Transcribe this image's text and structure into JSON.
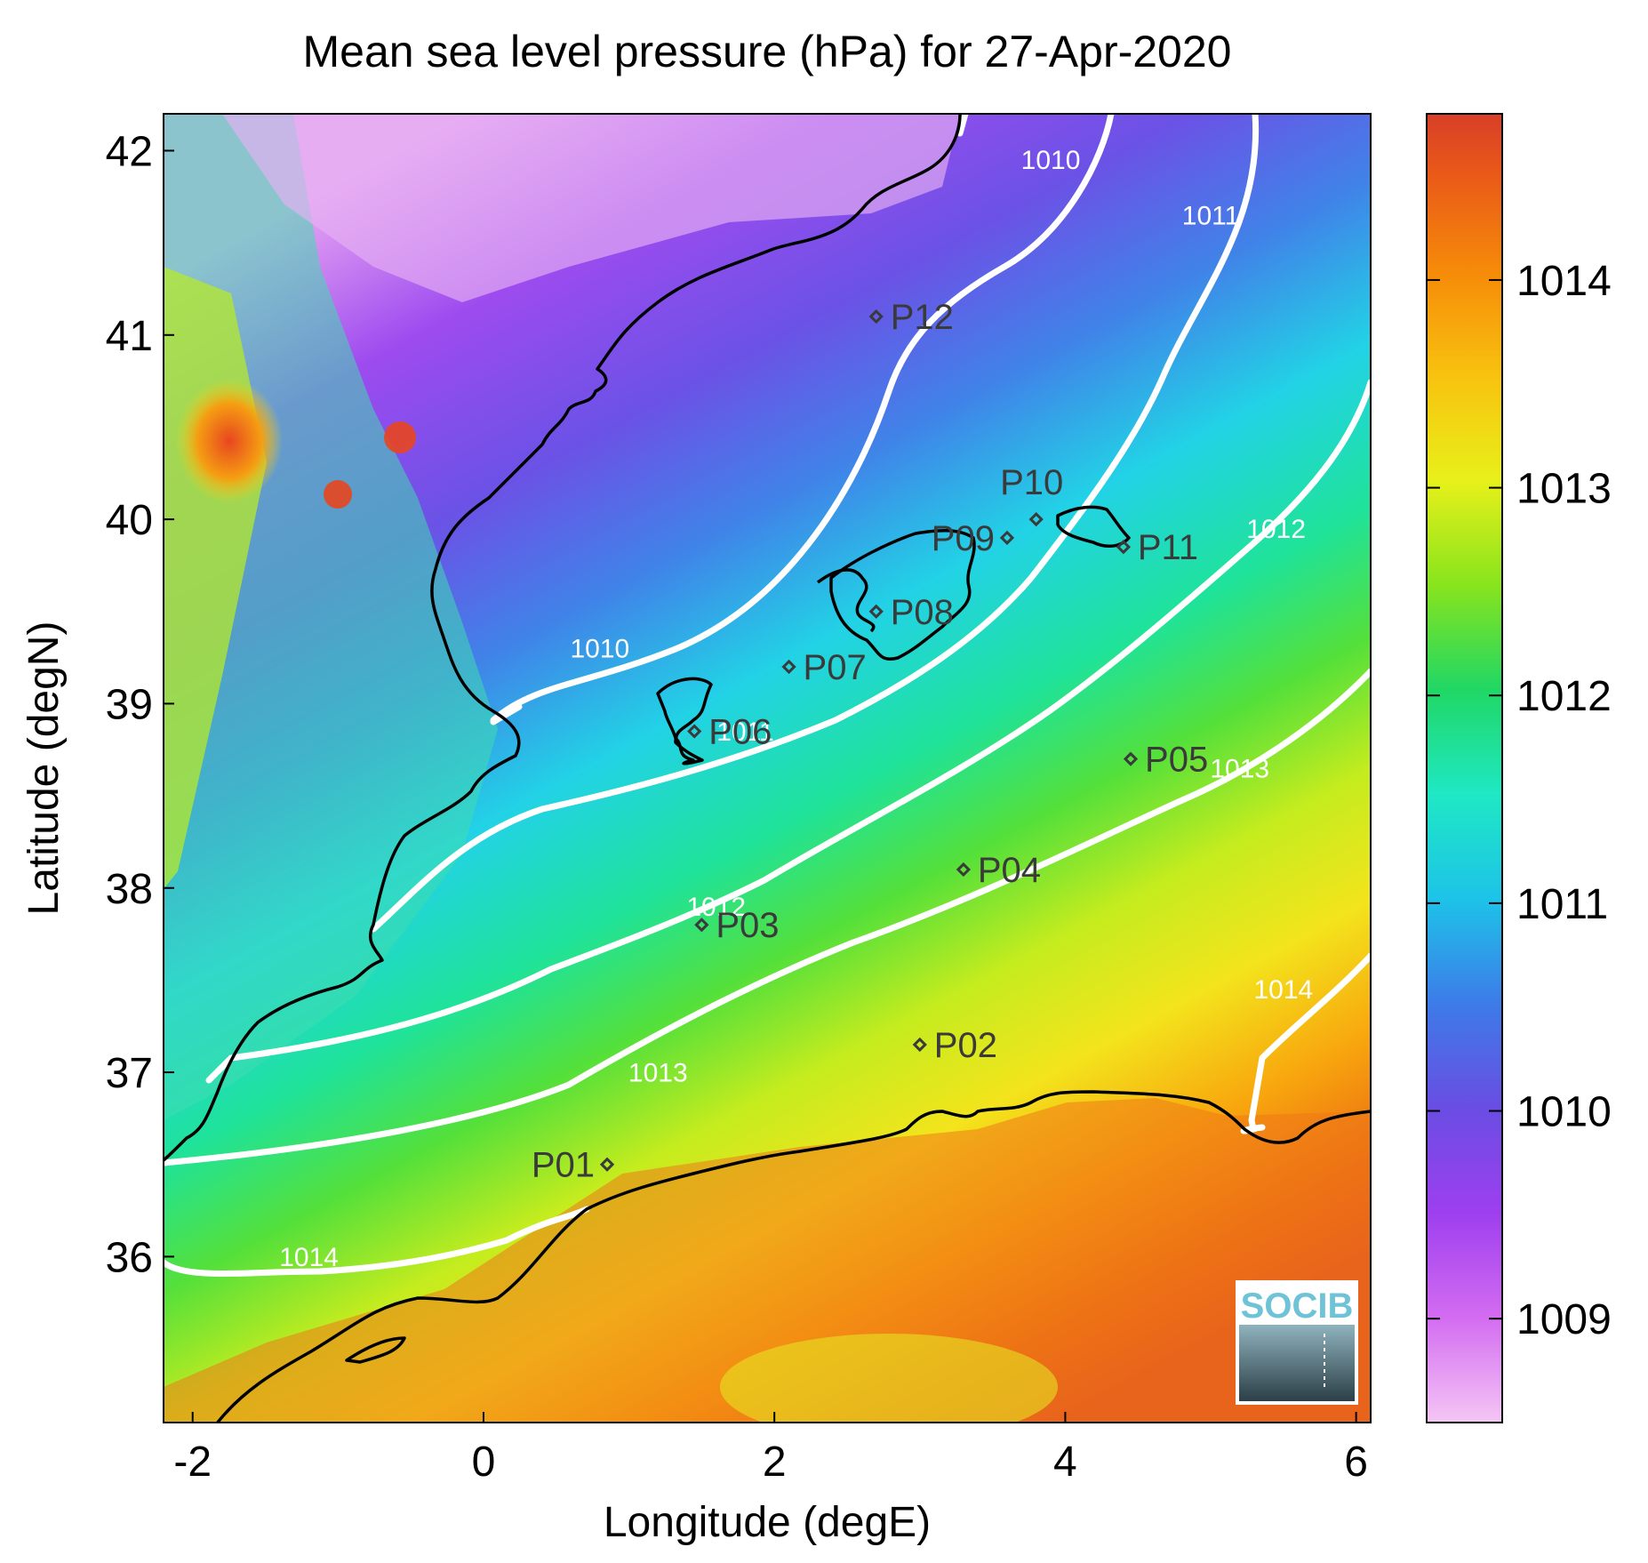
{
  "title": "Mean sea level pressure (hPa) for 27-Apr-2020",
  "xlabel": "Longitude (degE)",
  "ylabel": "Latitude (degN)",
  "x_ticks": [
    -2,
    0,
    2,
    4,
    6
  ],
  "y_ticks": [
    36,
    37,
    38,
    39,
    40,
    41,
    42
  ],
  "xlim": [
    -2.2,
    6.1
  ],
  "ylim": [
    35.1,
    42.2
  ],
  "colorbar": {
    "ticks": [
      1009,
      1010,
      1011,
      1012,
      1013,
      1014
    ],
    "range": [
      1008.5,
      1014.8
    ],
    "colormap": [
      "#f5c6f5",
      "#d36cf1",
      "#9e3fef",
      "#6a4de3",
      "#3d7be8",
      "#1dc3e8",
      "#1fe8c4",
      "#20d765",
      "#88e41d",
      "#e8f01a",
      "#f8c20f",
      "#f68a09",
      "#e8551a",
      "#d83f28"
    ]
  },
  "contours": [
    {
      "label": "1010",
      "color": "#ffffff"
    },
    {
      "label": "1011",
      "color": "#ffffff"
    },
    {
      "label": "1012",
      "color": "#ffffff"
    },
    {
      "label": "1013",
      "color": "#ffffff"
    },
    {
      "label": "1014",
      "color": "#ffffff"
    }
  ],
  "contour_labels": [
    {
      "text": "1010",
      "lon": 3.9,
      "lat": 41.9
    },
    {
      "text": "1011",
      "lon": 5.0,
      "lat": 41.6
    },
    {
      "text": "1010",
      "lon": 0.8,
      "lat": 39.25
    },
    {
      "text": "1011",
      "lon": 1.8,
      "lat": 38.8
    },
    {
      "text": "1012",
      "lon": 5.45,
      "lat": 39.9
    },
    {
      "text": "1013",
      "lon": 5.2,
      "lat": 38.6
    },
    {
      "text": "1012",
      "lon": 1.6,
      "lat": 37.85
    },
    {
      "text": "1013",
      "lon": 1.2,
      "lat": 36.95
    },
    {
      "text": "1014",
      "lon": 5.5,
      "lat": 37.4
    },
    {
      "text": "1014",
      "lon": -1.2,
      "lat": 35.95
    }
  ],
  "stations": [
    {
      "name": "P01",
      "lon": 0.85,
      "lat": 36.5
    },
    {
      "name": "P02",
      "lon": 3.0,
      "lat": 37.15
    },
    {
      "name": "P03",
      "lon": 1.5,
      "lat": 37.8
    },
    {
      "name": "P04",
      "lon": 3.3,
      "lat": 38.1
    },
    {
      "name": "P05",
      "lon": 4.45,
      "lat": 38.7
    },
    {
      "name": "P06",
      "lon": 1.45,
      "lat": 38.85
    },
    {
      "name": "P07",
      "lon": 2.1,
      "lat": 39.2
    },
    {
      "name": "P08",
      "lon": 2.7,
      "lat": 39.5
    },
    {
      "name": "P09",
      "lon": 3.6,
      "lat": 39.9
    },
    {
      "name": "P10",
      "lon": 3.8,
      "lat": 40.0
    },
    {
      "name": "P11",
      "lon": 4.4,
      "lat": 39.85
    },
    {
      "name": "P12",
      "lon": 2.7,
      "lat": 41.1
    }
  ],
  "logo": {
    "text": "SOCIB"
  }
}
